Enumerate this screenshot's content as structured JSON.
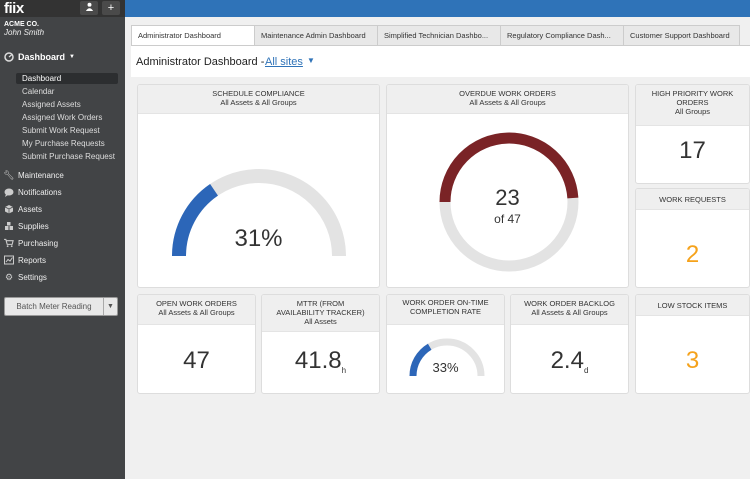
{
  "app": {
    "logo": "fiix",
    "user_icon": "user-icon",
    "add_icon": "plus-icon"
  },
  "sidebar": {
    "company": "ACME CO.",
    "user": "John Smith",
    "dashboard_label": "Dashboard",
    "dashboard_items": [
      {
        "label": "Dashboard"
      },
      {
        "label": "Calendar"
      },
      {
        "label": "Assigned Assets"
      },
      {
        "label": "Assigned Work Orders"
      },
      {
        "label": "Submit Work Request"
      },
      {
        "label": "My Purchase Requests"
      },
      {
        "label": "Submit Purchase Request"
      }
    ],
    "nav": [
      {
        "label": "Maintenance",
        "icon": "wrench-icon"
      },
      {
        "label": "Notifications",
        "icon": "chat-bubble-icon"
      },
      {
        "label": "Assets",
        "icon": "box-icon"
      },
      {
        "label": "Supplies",
        "icon": "supplies-icon"
      },
      {
        "label": "Purchasing",
        "icon": "cart-icon"
      },
      {
        "label": "Reports",
        "icon": "chart-icon"
      },
      {
        "label": "Settings",
        "icon": "gear-icon"
      }
    ],
    "batch_button": "Batch Meter Reading"
  },
  "tabs": [
    {
      "label": "Administrator Dashboard"
    },
    {
      "label": "Maintenance Admin Dashboard"
    },
    {
      "label": "Simplified Technician Dashbo..."
    },
    {
      "label": "Regulatory Compliance Dash..."
    },
    {
      "label": "Customer Support Dashboard"
    }
  ],
  "header": {
    "title": "Administrator Dashboard -",
    "sites": "All sites"
  },
  "cards": {
    "schedule": {
      "title": "SCHEDULE COMPLIANCE",
      "sub": "All Assets & All Groups",
      "value": "31%",
      "fraction": 0.31
    },
    "overdue": {
      "title": "OVERDUE WORK ORDERS",
      "sub": "All Assets & All Groups",
      "value": "23",
      "of": "of 47",
      "fraction": 0.49
    },
    "high_priority": {
      "title": "HIGH PRIORITY WORK ORDERS",
      "sub": "All Groups",
      "value": "17"
    },
    "work_requests": {
      "title": "WORK REQUESTS",
      "value": "2"
    },
    "open": {
      "title": "OPEN WORK ORDERS",
      "sub": "All Assets & All Groups",
      "value": "47"
    },
    "mttr": {
      "title": "MTTR (FROM AVAILABILITY TRACKER)",
      "sub": "All Assets",
      "value": "41.8",
      "unit": "h"
    },
    "ontime": {
      "title": "WORK ORDER ON-TIME COMPLETION RATE",
      "value": "33%",
      "fraction": 0.33
    },
    "backlog": {
      "title": "WORK ORDER BACKLOG",
      "sub": "All Assets & All Groups",
      "value": "2.4",
      "unit": "d"
    },
    "low_stock": {
      "title": "LOW STOCK ITEMS",
      "value": "3"
    }
  },
  "colors": {
    "brand_blue": "#2f73b8",
    "gauge_blue": "#2c66b8",
    "overdue_red": "#7a2326",
    "track_gray": "#e3e3e3",
    "orange": "#f5a21b"
  }
}
